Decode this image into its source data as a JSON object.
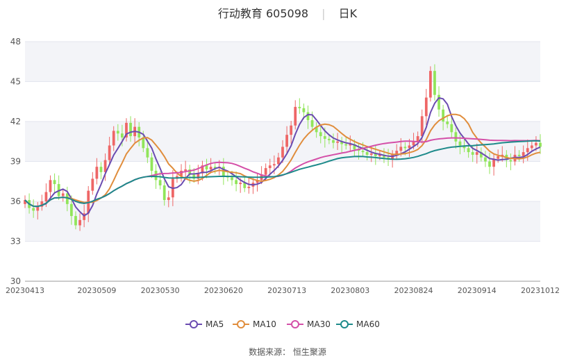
{
  "header": {
    "stock_name": "行动教育",
    "stock_code": "605098",
    "period": "日K"
  },
  "source_text": "数据来源：  恒生聚源",
  "chart_data": {
    "type": "candlestick",
    "title": "行动教育 605098 | 日K",
    "ylim": [
      30,
      48
    ],
    "y_ticks": [
      30,
      33,
      36,
      39,
      42,
      45,
      48
    ],
    "x_tick_labels": [
      "20230413",
      "20230509",
      "20230530",
      "20230620",
      "20230713",
      "20230803",
      "20230824",
      "20230914",
      "20231012"
    ],
    "x_tick_indices": [
      0,
      17,
      32,
      47,
      62,
      77,
      92,
      107,
      122
    ],
    "grid": true,
    "legend_position": "bottom",
    "colors": {
      "up": "#ee6666",
      "down": "#91e55a"
    },
    "candles": {
      "open": [
        35.8,
        36.1,
        35.5,
        35.3,
        35.6,
        36.0,
        36.7,
        37.6,
        37.3,
        36.4,
        36.6,
        35.8,
        34.9,
        34.2,
        34.6,
        35.1,
        36.8,
        37.7,
        38.6,
        38.2,
        39.1,
        40.2,
        41.3,
        41.1,
        40.8,
        41.9,
        40.9,
        41.6,
        40.8,
        40.0,
        39.3,
        38.3,
        37.6,
        37.2,
        36.1,
        36.3,
        37.7,
        37.9,
        38.3,
        38.4,
        38.0,
        37.7,
        38.1,
        38.7,
        38.4,
        38.6,
        38.5,
        38.6,
        37.9,
        37.8,
        37.6,
        37.3,
        37.4,
        37.0,
        37.1,
        37.4,
        37.6,
        38.0,
        38.5,
        38.7,
        38.8,
        39.3,
        40.1,
        41.0,
        41.7,
        43.1,
        43.0,
        42.7,
        42.1,
        41.6,
        41.2,
        40.9,
        40.7,
        40.6,
        40.4,
        40.5,
        40.3,
        40.2,
        40.3,
        39.9,
        39.8,
        39.7,
        39.5,
        39.6,
        39.4,
        39.5,
        39.3,
        39.2,
        39.5,
        39.8,
        40.1,
        40.0,
        40.2,
        40.5,
        40.9,
        42.4,
        43.8,
        45.8,
        44.0,
        42.9,
        42.0,
        41.8,
        41.2,
        40.5,
        40.2,
        40.0,
        39.7,
        39.5,
        39.7,
        39.3,
        39.0,
        38.6,
        39.2,
        39.4,
        39.5,
        39.1,
        39.0,
        39.5,
        39.4,
        39.7,
        40.0,
        40.2,
        40.4
      ],
      "close": [
        36.1,
        35.5,
        35.3,
        35.6,
        36.0,
        36.7,
        37.6,
        37.3,
        36.4,
        36.6,
        35.8,
        34.9,
        34.2,
        34.6,
        35.1,
        36.8,
        37.7,
        38.6,
        38.2,
        39.1,
        40.2,
        41.3,
        41.1,
        40.8,
        41.9,
        40.9,
        41.6,
        40.8,
        40.0,
        39.3,
        38.3,
        37.6,
        37.2,
        36.1,
        36.3,
        37.7,
        37.9,
        38.3,
        38.4,
        38.0,
        37.7,
        38.1,
        38.7,
        38.4,
        38.6,
        38.5,
        38.6,
        37.9,
        37.8,
        37.6,
        37.3,
        37.4,
        37.0,
        37.1,
        37.4,
        37.6,
        38.0,
        38.5,
        38.7,
        38.8,
        39.3,
        40.1,
        41.0,
        41.7,
        43.1,
        43.0,
        42.7,
        42.1,
        41.6,
        41.2,
        40.9,
        40.7,
        40.6,
        40.4,
        40.5,
        40.3,
        40.2,
        40.3,
        39.9,
        39.8,
        39.7,
        39.5,
        39.6,
        39.4,
        39.5,
        39.3,
        39.2,
        39.5,
        39.8,
        40.1,
        40.0,
        40.2,
        40.5,
        40.9,
        42.4,
        43.8,
        45.8,
        44.0,
        42.9,
        42.0,
        41.8,
        41.2,
        40.5,
        40.2,
        40.0,
        39.7,
        39.5,
        39.7,
        39.3,
        39.0,
        38.6,
        39.2,
        39.4,
        39.5,
        39.1,
        39.0,
        39.5,
        39.4,
        39.7,
        40.0,
        40.2,
        40.4,
        40.1
      ]
    },
    "series": [
      {
        "name": "MA5",
        "color": "#6a4bb0"
      },
      {
        "name": "MA10",
        "color": "#e08d3c"
      },
      {
        "name": "MA30",
        "color": "#d44fa8"
      },
      {
        "name": "MA60",
        "color": "#1d8a8a"
      }
    ]
  }
}
